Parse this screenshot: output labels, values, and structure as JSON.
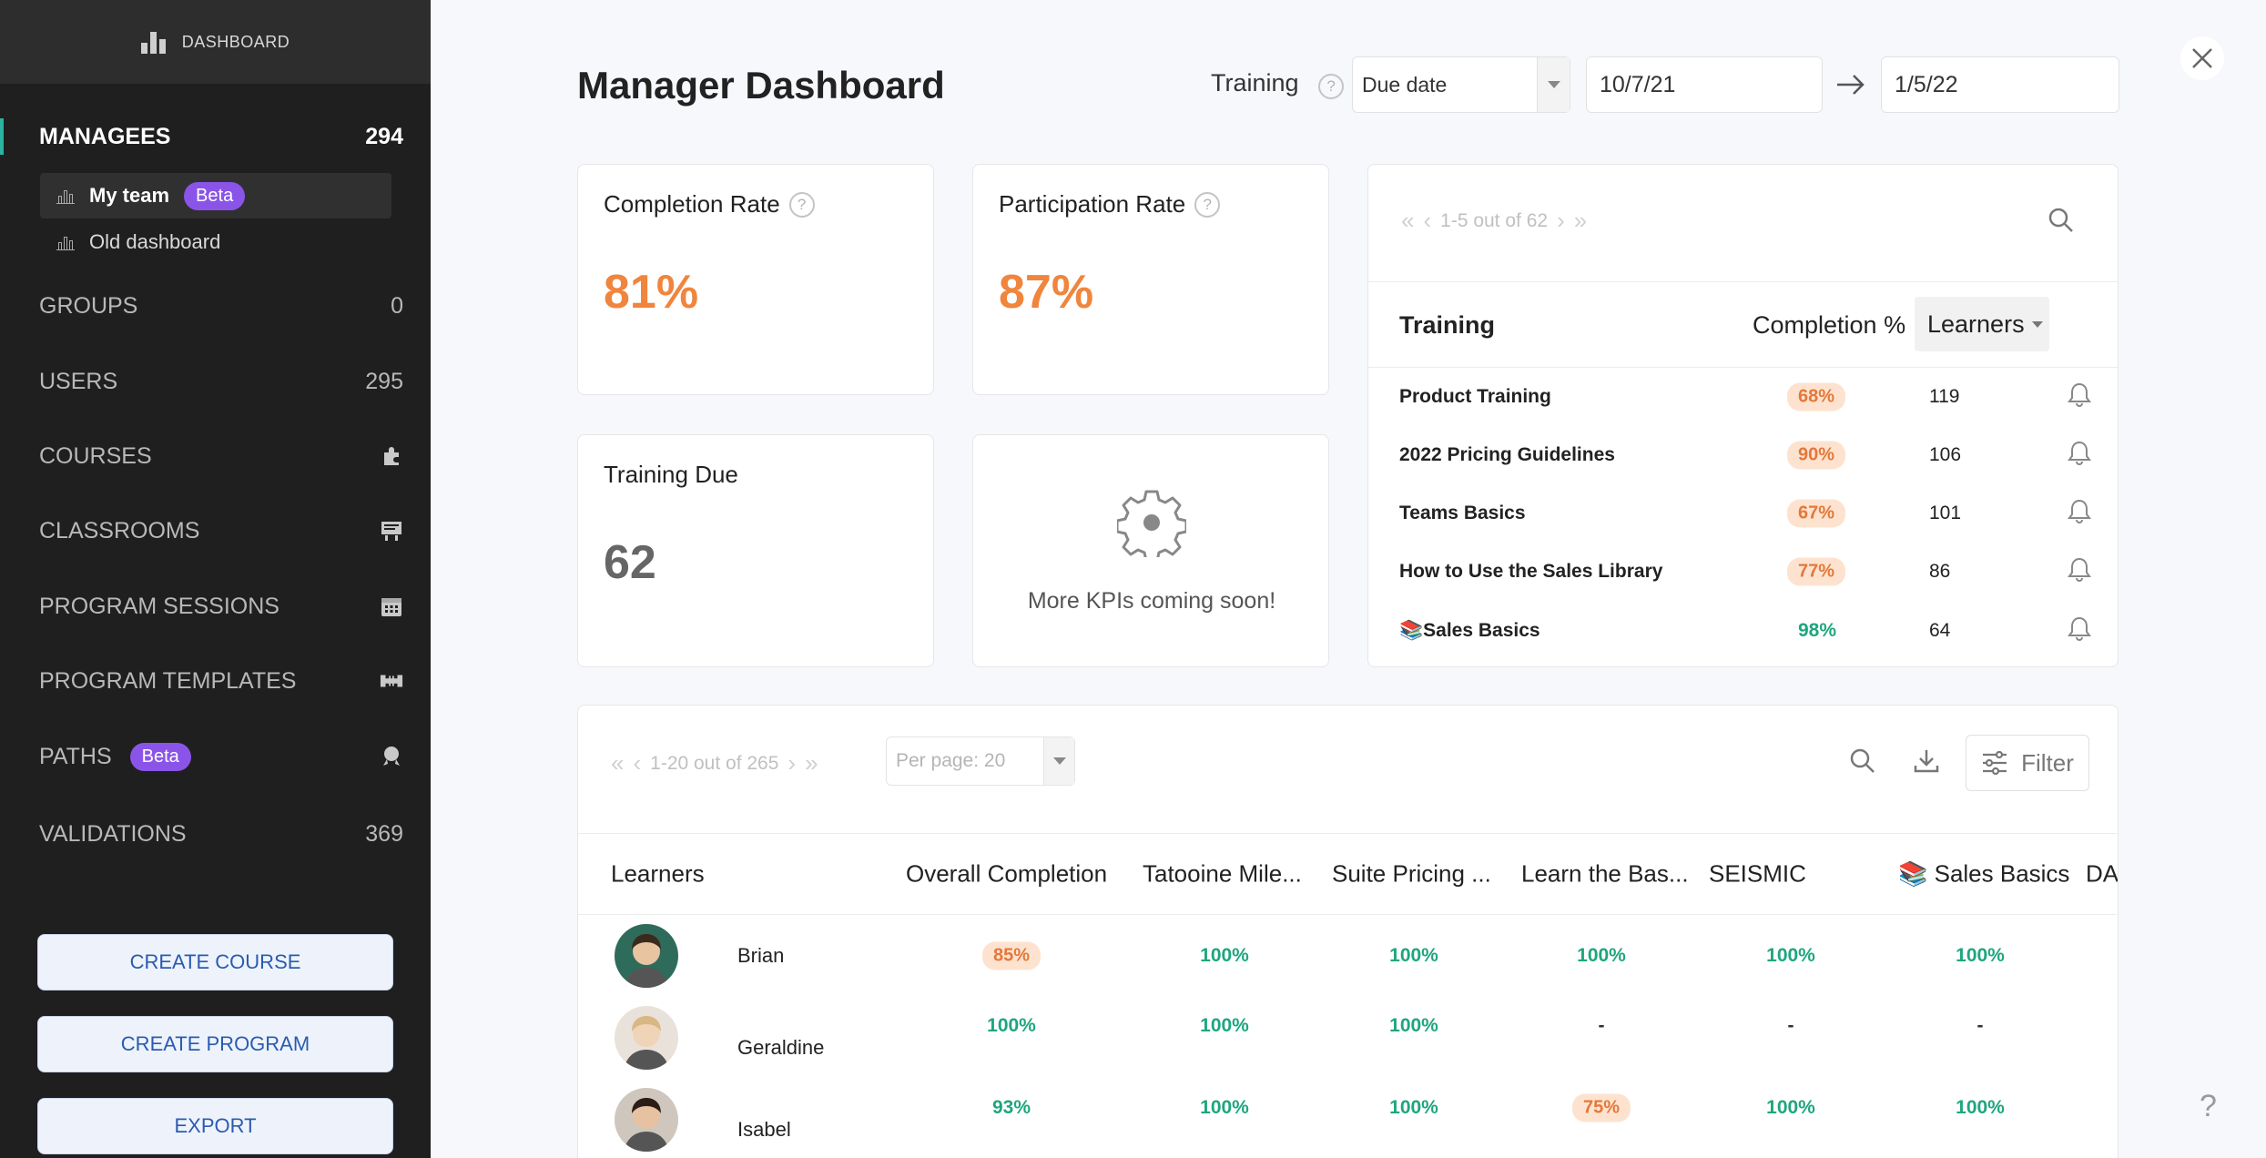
{
  "sidebar": {
    "top_label": "DASHBOARD",
    "managees": {
      "label": "MANAGEES",
      "count": "294"
    },
    "sub_items": [
      {
        "label": "My team",
        "badge": "Beta"
      },
      {
        "label": "Old dashboard"
      }
    ],
    "nav": [
      {
        "label": "GROUPS",
        "count": "0"
      },
      {
        "label": "USERS",
        "count": "295"
      },
      {
        "label": "COURSES",
        "icon": "puzzle-icon"
      },
      {
        "label": "CLASSROOMS",
        "icon": "classroom-icon"
      },
      {
        "label": "PROGRAM SESSIONS",
        "icon": "calendar-icon"
      },
      {
        "label": "PROGRAM TEMPLATES",
        "icon": "template-icon"
      },
      {
        "label": "PATHS",
        "badge": "Beta",
        "icon": "rocket-icon"
      },
      {
        "label": "VALIDATIONS",
        "count": "369"
      }
    ],
    "buttons": [
      "CREATE COURSE",
      "CREATE PROGRAM",
      "EXPORT"
    ]
  },
  "header": {
    "title": "Manager Dashboard",
    "filter_label": "Training",
    "date_type": "Due date",
    "start_date": "10/7/21",
    "end_date": "1/5/22"
  },
  "kpis": {
    "completion": {
      "label": "Completion Rate",
      "value": "81%"
    },
    "participation": {
      "label": "Participation Rate",
      "value": "87%"
    },
    "due": {
      "label": "Training Due",
      "value": "62"
    },
    "coming": {
      "label": "More KPIs coming soon!"
    }
  },
  "training_table": {
    "pager": "1-5 out of 62",
    "headers": {
      "training": "Training",
      "completion": "Completion %",
      "learners": "Learners"
    },
    "rows": [
      {
        "name": "Product Training",
        "completion": "68%",
        "learners": "119",
        "highlight": true
      },
      {
        "name": "2022 Pricing Guidelines",
        "completion": "90%",
        "learners": "106",
        "highlight": true
      },
      {
        "name": "Teams Basics",
        "completion": "67%",
        "learners": "101",
        "highlight": true
      },
      {
        "name": "How to Use the Sales Library",
        "completion": "77%",
        "learners": "86",
        "highlight": true
      },
      {
        "name": "📚Sales Basics",
        "completion": "98%",
        "learners": "64",
        "highlight": false
      }
    ]
  },
  "learners_table": {
    "pager": "1-20 out of 265",
    "per_page": "Per page: 20",
    "filter_label": "Filter",
    "headers": [
      "Learners",
      "Overall Completion",
      "Tatooine Mile...",
      "Suite Pricing ...",
      "Learn the Bas...",
      "SEISMIC",
      "📚 Sales Basics",
      "DA"
    ],
    "rows": [
      {
        "name": "Brian",
        "cells": [
          "85%",
          "100%",
          "100%",
          "100%",
          "100%",
          "100%"
        ]
      },
      {
        "name": "Geraldine",
        "cells": [
          "100%",
          "100%",
          "100%",
          "-",
          "-",
          "-"
        ]
      },
      {
        "name": "Isabel",
        "cells": [
          "93%",
          "100%",
          "100%",
          "75%",
          "100%",
          "100%"
        ]
      }
    ]
  },
  "help_label": "?",
  "colors": {
    "accent_orange": "#f0853d",
    "accent_green": "#1ea67e",
    "beta_purple": "#8b54e8",
    "sidebar_bg": "#1f1f1f"
  }
}
